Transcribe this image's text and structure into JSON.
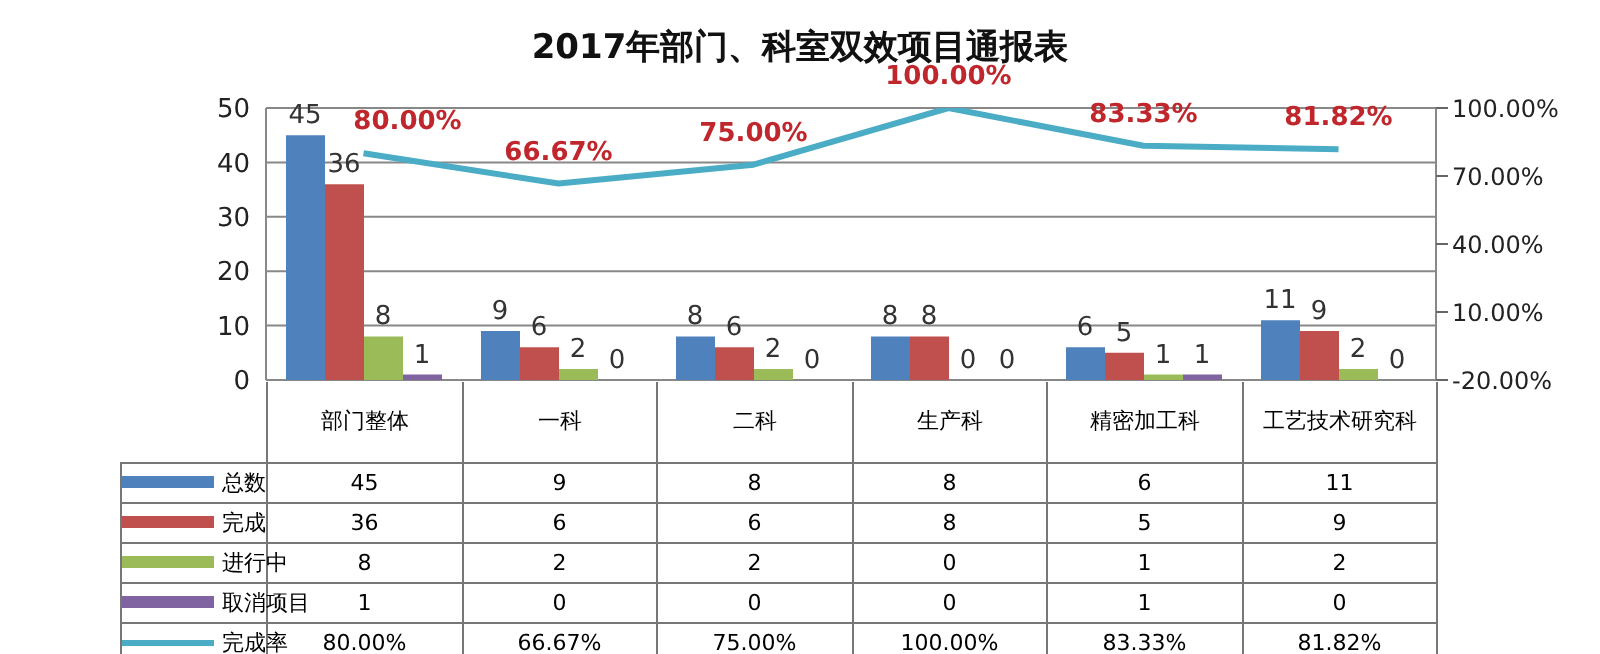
{
  "chart_data": {
    "type": "bar",
    "title": "2017年部门、科室双效项目通报表",
    "categories": [
      "部门整体",
      "一科",
      "二科",
      "生产科",
      "精密加工科",
      "工艺技术研究科"
    ],
    "series": [
      {
        "name": "总数",
        "color": "#4f81bd",
        "values": [
          45,
          9,
          8,
          8,
          6,
          11
        ],
        "value_labels": [
          "45",
          "9",
          "8",
          "8",
          "6",
          "11"
        ]
      },
      {
        "name": "完成",
        "color": "#c0504d",
        "values": [
          36,
          6,
          6,
          8,
          5,
          9
        ],
        "value_labels": [
          "36",
          "6",
          "6",
          "8",
          "5",
          "9"
        ]
      },
      {
        "name": "进行中",
        "color": "#9bbb59",
        "values": [
          8,
          2,
          2,
          0,
          1,
          2
        ],
        "value_labels": [
          "8",
          "2",
          "2",
          "0",
          "1",
          "2"
        ]
      },
      {
        "name": "取消项目",
        "color": "#8064a2",
        "values": [
          1,
          0,
          0,
          0,
          1,
          0
        ],
        "value_labels": [
          "1",
          "0",
          "0",
          "0",
          "1",
          "0"
        ]
      },
      {
        "name": "完成率",
        "type": "line",
        "axis": "y2",
        "color": "#4bacc6",
        "values": [
          80,
          66.67,
          75,
          100,
          83.33,
          81.82
        ],
        "value_labels": [
          "80.00%",
          "66.67%",
          "75.00%",
          "100.00%",
          "83.33%",
          "81.82%"
        ]
      }
    ],
    "ylim": [
      0,
      50
    ],
    "yticks": [
      0,
      10,
      20,
      30,
      40,
      50
    ],
    "y2lim": [
      -20,
      100
    ],
    "y2ticks": [
      {
        "value": -20,
        "label": "-20.00%"
      },
      {
        "value": 10,
        "label": "10.00%"
      },
      {
        "value": 40,
        "label": "40.00%"
      },
      {
        "value": 70,
        "label": "70.00%"
      },
      {
        "value": 100,
        "label": "100.00%"
      }
    ],
    "grid": "y",
    "legend": "bottom",
    "marker": "none"
  }
}
